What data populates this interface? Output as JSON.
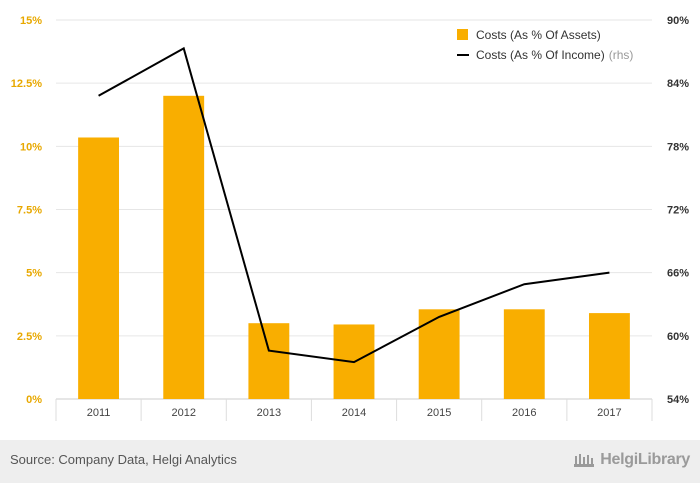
{
  "chart_data": {
    "type": "bar+line",
    "categories": [
      "2011",
      "2012",
      "2013",
      "2014",
      "2015",
      "2016",
      "2017"
    ],
    "series": [
      {
        "name": "Costs (As % Of Assets)",
        "type": "bar",
        "axis": "left",
        "color": "#f9ae00",
        "values": [
          10.35,
          12.0,
          3.0,
          2.95,
          3.55,
          3.55,
          3.4
        ]
      },
      {
        "name": "Costs (As % Of Income)",
        "type": "line",
        "axis": "right",
        "color": "#000000",
        "values": [
          82.8,
          87.3,
          58.6,
          57.5,
          61.8,
          64.9,
          66.0
        ]
      }
    ],
    "left_axis": {
      "ylim": [
        0,
        15
      ],
      "ticks": [
        0,
        2.5,
        5,
        7.5,
        10,
        12.5,
        15
      ],
      "tick_labels": [
        "0%",
        "2.5%",
        "5%",
        "7.5%",
        "10%",
        "12.5%",
        "15%"
      ],
      "color": "#e8a800"
    },
    "right_axis": {
      "ylim": [
        54,
        90
      ],
      "ticks": [
        54,
        60,
        66,
        72,
        78,
        84,
        90
      ],
      "tick_labels": [
        "54%",
        "60%",
        "66%",
        "72%",
        "78%",
        "84%",
        "90%"
      ]
    },
    "legend": {
      "placement": "top-right",
      "entries": [
        {
          "label": "Costs (As % Of Assets)",
          "note": ""
        },
        {
          "label": "Costs (As % Of Income)",
          "note": "(rhs)"
        }
      ]
    },
    "grid": true
  },
  "footer": {
    "source": "Source: Company Data, Helgi Analytics",
    "logo": "HelgiLibrary"
  }
}
